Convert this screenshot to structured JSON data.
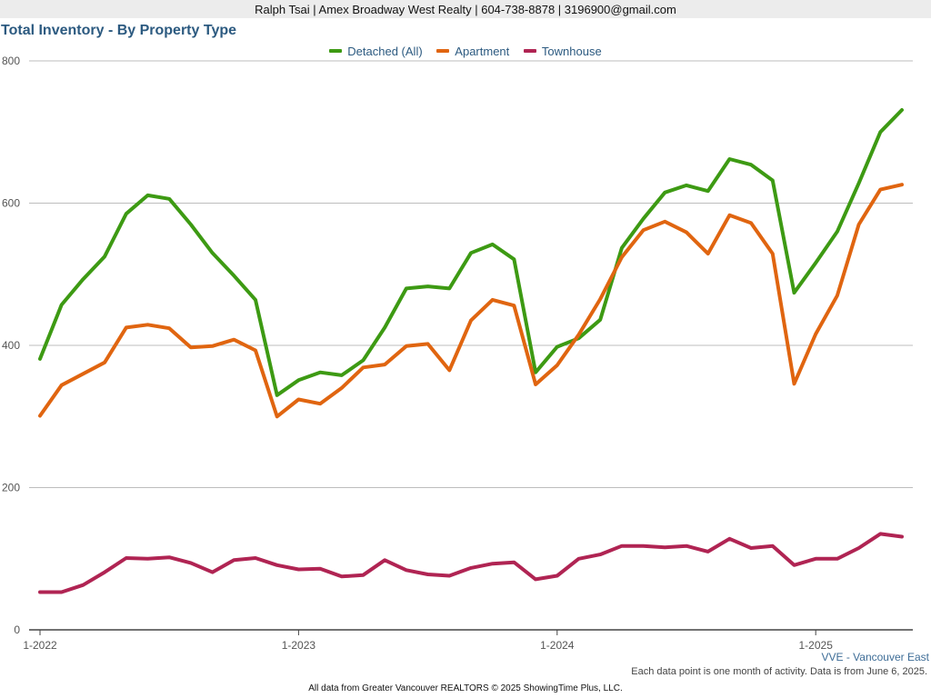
{
  "header": {
    "contact": "Ralph Tsai | Amex Broadway West Realty | 604-738-8878 | 3196900@gmail.com"
  },
  "chart_data": {
    "type": "line",
    "title": "Total Inventory - By Property Type",
    "ylim": [
      0,
      800
    ],
    "yticks": [
      "0",
      "200",
      "400",
      "600",
      "800"
    ],
    "xticks": [
      {
        "label": "1-2022",
        "index": 0
      },
      {
        "label": "1-2023",
        "index": 12
      },
      {
        "label": "1-2024",
        "index": 24
      },
      {
        "label": "1-2025",
        "index": 36
      }
    ],
    "x": [
      "2022-01",
      "2022-02",
      "2022-03",
      "2022-04",
      "2022-05",
      "2022-06",
      "2022-07",
      "2022-08",
      "2022-09",
      "2022-10",
      "2022-11",
      "2022-12",
      "2023-01",
      "2023-02",
      "2023-03",
      "2023-04",
      "2023-05",
      "2023-06",
      "2023-07",
      "2023-08",
      "2023-09",
      "2023-10",
      "2023-11",
      "2023-12",
      "2024-01",
      "2024-02",
      "2024-03",
      "2024-04",
      "2024-05",
      "2024-06",
      "2024-07",
      "2024-08",
      "2024-09",
      "2024-10",
      "2024-11",
      "2024-12",
      "2025-01",
      "2025-02",
      "2025-03",
      "2025-04",
      "2025-05"
    ],
    "grid": true,
    "legend": "top-center",
    "series": [
      {
        "name": "Detached (All)",
        "color": "#3d9a13",
        "values": [
          381,
          457,
          493,
          525,
          585,
          611,
          606,
          570,
          530,
          498,
          464,
          330,
          351,
          362,
          358,
          379,
          425,
          480,
          483,
          480,
          530,
          542,
          521,
          362,
          398,
          410,
          436,
          537,
          578,
          615,
          625,
          617,
          662,
          654,
          632,
          474,
          516,
          560,
          628,
          700,
          731
        ]
      },
      {
        "name": "Apartment",
        "color": "#e06510",
        "values": [
          301,
          344,
          360,
          376,
          425,
          429,
          424,
          397,
          399,
          408,
          393,
          300,
          324,
          318,
          340,
          369,
          373,
          399,
          402,
          365,
          435,
          464,
          456,
          345,
          372,
          415,
          465,
          524,
          562,
          574,
          559,
          529,
          583,
          572,
          529,
          346,
          416,
          470,
          570,
          619,
          626
        ]
      },
      {
        "name": "Townhouse",
        "color": "#b02453",
        "values": [
          53,
          53,
          63,
          81,
          101,
          100,
          102,
          94,
          81,
          98,
          101,
          91,
          85,
          86,
          75,
          77,
          98,
          84,
          78,
          76,
          87,
          93,
          95,
          71,
          76,
          100,
          106,
          118,
          118,
          116,
          118,
          110,
          128,
          115,
          118,
          91,
          100,
          100,
          115,
          135,
          131
        ]
      }
    ]
  },
  "region_label": "VVE - Vancouver East",
  "footnote": "Each data point is one month of activity. Data is from June 6, 2025.",
  "source": "All data from Greater Vancouver REALTORS © 2025 ShowingTime Plus, LLC."
}
